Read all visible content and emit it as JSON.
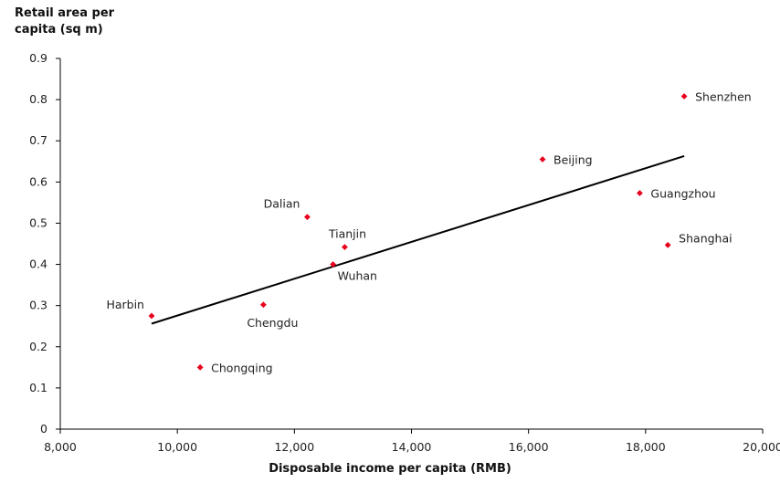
{
  "chart_data": {
    "type": "scatter",
    "title": "",
    "ylabel_lines": [
      "Retail area per",
      "capita (sq m)"
    ],
    "xlabel": "Disposable income per capita (RMB)",
    "xlim": [
      8000,
      20000
    ],
    "ylim": [
      0,
      0.9
    ],
    "x_ticks": [
      8000,
      10000,
      12000,
      14000,
      16000,
      18000,
      20000
    ],
    "x_tick_labels": [
      "8,000",
      "10,000",
      "12,000",
      "14,000",
      "16,000",
      "18,000",
      "20,000"
    ],
    "y_ticks": [
      0,
      0.1,
      0.2,
      0.3,
      0.4,
      0.5,
      0.6,
      0.7,
      0.8,
      0.9
    ],
    "y_tick_labels": [
      "0",
      "0.1",
      "0.2",
      "0.3",
      "0.4",
      "0.5",
      "0.6",
      "0.7",
      "0.8",
      "0.9"
    ],
    "grid": false,
    "marker_color": "#e8001c",
    "trendline_color": "#000000",
    "points": [
      {
        "label": "Harbin",
        "x": 9560,
        "y": 0.275,
        "label_pos": "left"
      },
      {
        "label": "Chongqing",
        "x": 10390,
        "y": 0.15,
        "label_pos": "right"
      },
      {
        "label": "Chengdu",
        "x": 11470,
        "y": 0.302,
        "label_pos": "below"
      },
      {
        "label": "Dalian",
        "x": 12220,
        "y": 0.515,
        "label_pos": "above-left"
      },
      {
        "label": "Wuhan",
        "x": 12660,
        "y": 0.4,
        "label_pos": "below-right"
      },
      {
        "label": "Tianjin",
        "x": 12860,
        "y": 0.442,
        "label_pos": "above"
      },
      {
        "label": "Beijing",
        "x": 16240,
        "y": 0.655,
        "label_pos": "right"
      },
      {
        "label": "Guangzhou",
        "x": 17900,
        "y": 0.573,
        "label_pos": "right"
      },
      {
        "label": "Shanghai",
        "x": 18380,
        "y": 0.447,
        "label_pos": "right-above"
      },
      {
        "label": "Shenzhen",
        "x": 18660,
        "y": 0.808,
        "label_pos": "right"
      }
    ],
    "trendline": {
      "x": [
        9560,
        18660
      ],
      "y": [
        0.256,
        0.663
      ]
    }
  }
}
